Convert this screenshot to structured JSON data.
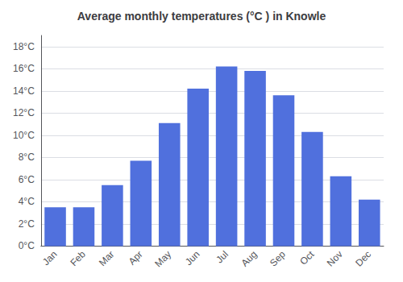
{
  "chart_data": {
    "type": "bar",
    "title": "Average monthly temperatures (°C ) in Knowle",
    "categories": [
      "Jan",
      "Feb",
      "Mar",
      "Apr",
      "May",
      "Jun",
      "Jul",
      "Aug",
      "Sep",
      "Oct",
      "Nov",
      "Dec"
    ],
    "values": [
      3.5,
      3.5,
      5.5,
      7.7,
      11.1,
      14.2,
      16.2,
      15.8,
      13.6,
      10.3,
      6.3,
      4.2
    ],
    "ylim": [
      0,
      19
    ],
    "yticks": [
      {
        "value": 0,
        "label": "0°C"
      },
      {
        "value": 2,
        "label": "2°C"
      },
      {
        "value": 4,
        "label": "4°C"
      },
      {
        "value": 6,
        "label": "6°C"
      },
      {
        "value": 8,
        "label": "8°C"
      },
      {
        "value": 10,
        "label": "10°C"
      },
      {
        "value": 12,
        "label": "12°C"
      },
      {
        "value": 14,
        "label": "14°C"
      },
      {
        "value": 16,
        "label": "16°C"
      },
      {
        "value": 18,
        "label": "18°C"
      }
    ],
    "grid": true
  }
}
